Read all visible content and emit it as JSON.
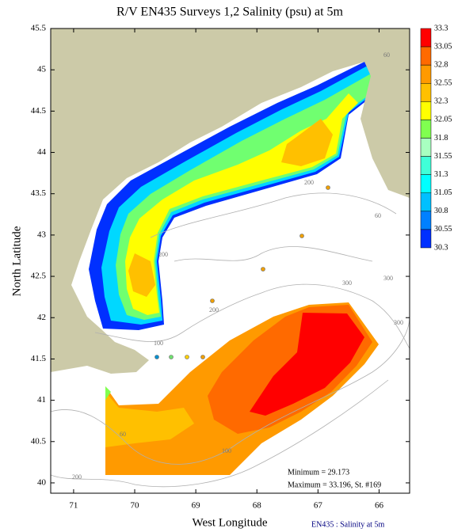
{
  "chart_data": {
    "type": "map",
    "title": "R/V EN435 Surveys 1,2 Salinity (psu) at 5m",
    "x_label": "West Longitude",
    "y_label": "North Latitude",
    "xlim": [
      71.375,
      65.5
    ],
    "ylim": [
      39.875,
      45.5
    ],
    "xticks": [
      71,
      70,
      69,
      68,
      67,
      66
    ],
    "yticks": [
      45.5,
      45,
      44.5,
      44,
      43.5,
      43,
      42.5,
      42,
      41.5,
      41,
      40.5,
      40
    ],
    "colorbar": {
      "levels": [
        33.3,
        33.05,
        32.8,
        32.55,
        32.3,
        32.05,
        31.8,
        31.55,
        31.3,
        31.05,
        30.8,
        30.55,
        30.3
      ],
      "colors": [
        "#ff0000",
        "#ff6a00",
        "#ff9a00",
        "#ffc000",
        "#ffff00",
        "#80ff50",
        "#a8ffc0",
        "#40ffd8",
        "#00ffff",
        "#00c0ff",
        "#0080ff",
        "#0030ff"
      ]
    },
    "contour_labels": [
      "60",
      "200",
      "60",
      "200",
      "300",
      "300",
      "200",
      "100",
      "300",
      "60",
      "100",
      "200"
    ],
    "minimum": "Minimum = 29.173",
    "maximum": "Maximum = 33.196, St. #169",
    "footer": "EN435 : Salinity at 5m"
  }
}
